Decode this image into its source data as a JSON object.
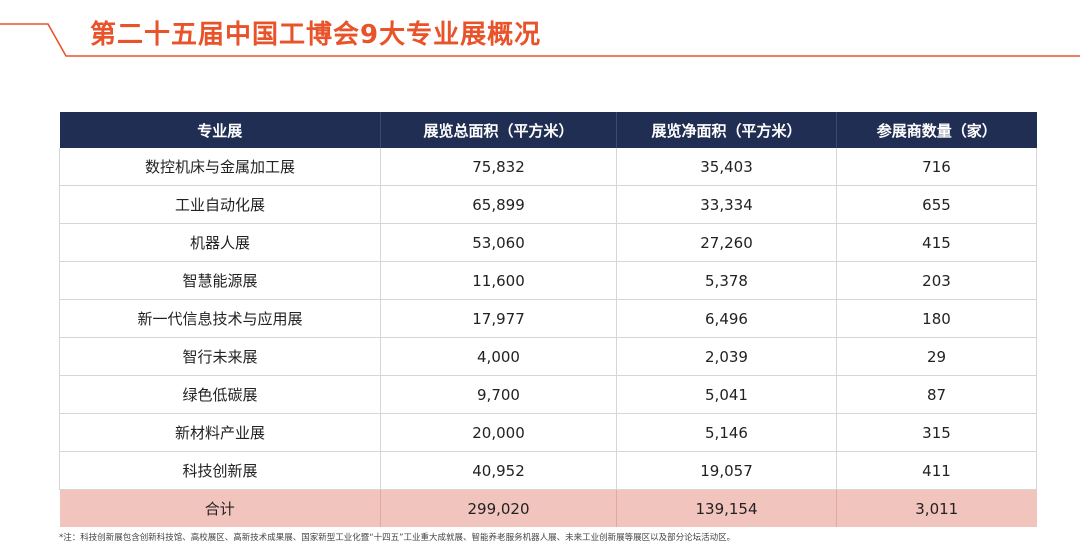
{
  "title": "第二十五届中国工博会9大专业展概况",
  "table": {
    "headers": [
      "专业展",
      "展览总面积（平方米）",
      "展览净面积（平方米）",
      "参展商数量（家）"
    ],
    "rows": [
      [
        "数控机床与金属加工展",
        "75,832",
        "35,403",
        "716"
      ],
      [
        "工业自动化展",
        "65,899",
        "33,334",
        "655"
      ],
      [
        "机器人展",
        "53,060",
        "27,260",
        "415"
      ],
      [
        "智慧能源展",
        "11,600",
        "5,378",
        "203"
      ],
      [
        "新一代信息技术与应用展",
        "17,977",
        "6,496",
        "180"
      ],
      [
        "智行未来展",
        "4,000",
        "2,039",
        "29"
      ],
      [
        "绿色低碳展",
        "9,700",
        "5,041",
        "87"
      ],
      [
        "新材料产业展",
        "20,000",
        "5,146",
        "315"
      ],
      [
        "科技创新展",
        "40,952",
        "19,057",
        "411"
      ]
    ],
    "total": [
      "合计",
      "299,020",
      "139,154",
      "3,011"
    ]
  },
  "footnote": "*注：科技创新展包含创新科技馆、高校展区、高新技术成果展、国家新型工业化暨“十四五”工业重大成就展、智能养老服务机器人展、未来工业创新展等展区以及部分论坛活动区。",
  "colors": {
    "accent": "#e8532a",
    "header_bg": "#1f2e52",
    "total_bg": "#f2c4be"
  }
}
